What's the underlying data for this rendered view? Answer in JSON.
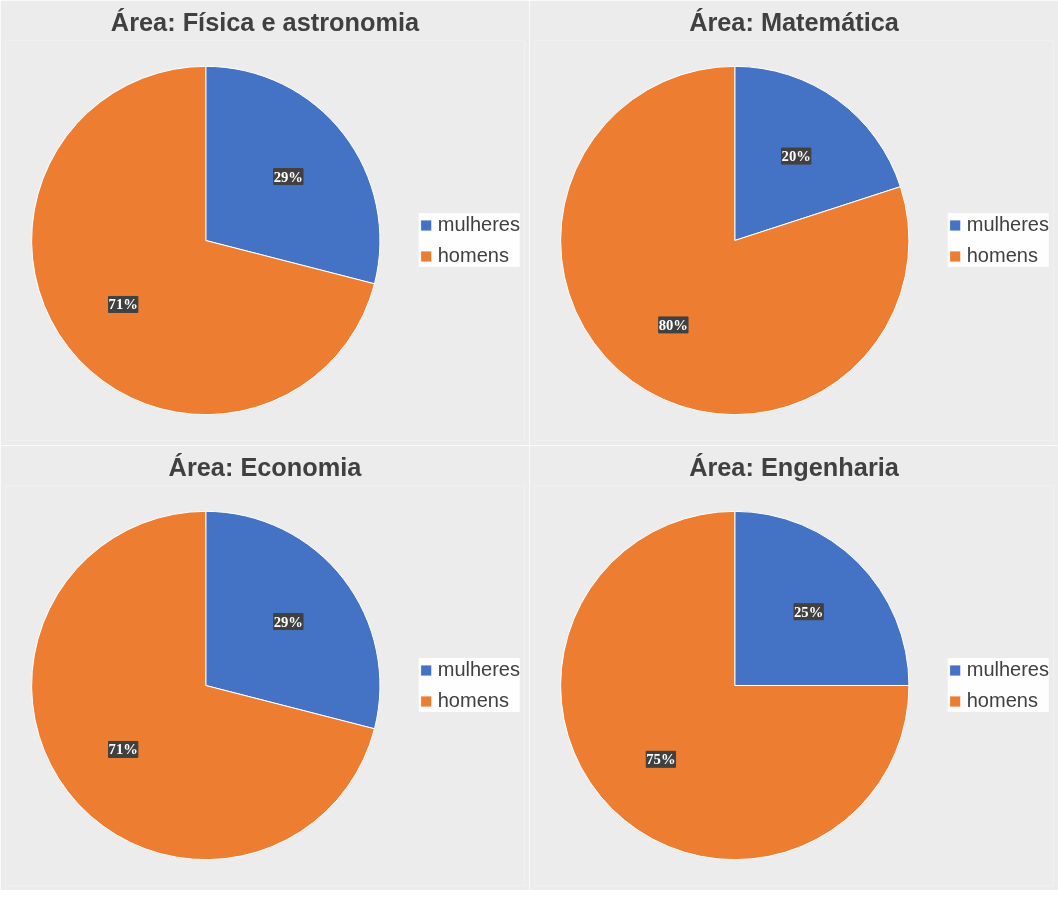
{
  "chart_data": [
    {
      "type": "pie",
      "title": "Área: Física e astronomia",
      "categories": [
        "mulheres",
        "homens"
      ],
      "values": [
        29,
        71
      ],
      "colors": [
        "#4472c4",
        "#ed7d31"
      ],
      "value_labels": [
        "29%",
        "71%"
      ],
      "legend": "right"
    },
    {
      "type": "pie",
      "title": "Área: Matemática",
      "categories": [
        "mulheres",
        "homens"
      ],
      "values": [
        20,
        80
      ],
      "colors": [
        "#4472c4",
        "#ed7d31"
      ],
      "value_labels": [
        "20%",
        "80%"
      ],
      "legend": "right"
    },
    {
      "type": "pie",
      "title": "Área: Economia",
      "categories": [
        "mulheres",
        "homens"
      ],
      "values": [
        29,
        71
      ],
      "colors": [
        "#4472c4",
        "#ed7d31"
      ],
      "value_labels": [
        "29%",
        "71%"
      ],
      "legend": "right"
    },
    {
      "type": "pie",
      "title": "Área: Engenharia",
      "categories": [
        "mulheres",
        "homens"
      ],
      "values": [
        25,
        75
      ],
      "colors": [
        "#4472c4",
        "#ed7d31"
      ],
      "value_labels": [
        "25%",
        "75%"
      ],
      "legend": "right"
    }
  ]
}
